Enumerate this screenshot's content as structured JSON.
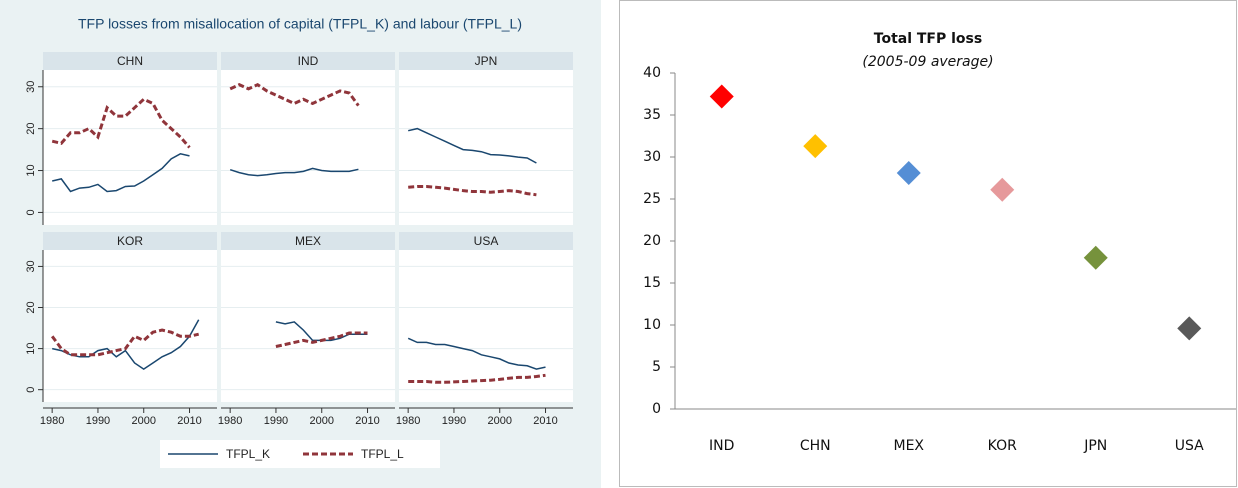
{
  "chart_data": [
    {
      "type": "line-panels",
      "title": "TFP losses from misallocation of capital (TFPL_K) and labour (TFPL_L)",
      "series": [
        {
          "name": "TFPL_K",
          "color": "#1a476f",
          "dash": false
        },
        {
          "name": "TFPL_L",
          "color": "#90353b",
          "dash": true
        }
      ],
      "xlim": [
        1978,
        2016
      ],
      "xticks": [
        1980,
        1990,
        2000,
        2010
      ],
      "ylim": [
        -3,
        34
      ],
      "yticks": [
        0,
        10,
        20,
        30
      ],
      "panels": [
        {
          "title": "CHN",
          "x": [
            1980,
            1982,
            1984,
            1986,
            1988,
            1990,
            1992,
            1994,
            1996,
            1998,
            2000,
            2002,
            2004,
            2006,
            2008,
            2010
          ],
          "values": [
            [
              7.5,
              8,
              5,
              5.8,
              6,
              6.7,
              5,
              5.2,
              6.2,
              6.3,
              7.5,
              9,
              10.5,
              12.8,
              14,
              13.5
            ],
            [
              17,
              16.5,
              19,
              19,
              20,
              18,
              25,
              23,
              23,
              25,
              27,
              26,
              22,
              20,
              18,
              15.5
            ]
          ]
        },
        {
          "title": "IND",
          "x": [
            1980,
            1982,
            1984,
            1986,
            1988,
            1990,
            1992,
            1994,
            1996,
            1998,
            2000,
            2002,
            2004,
            2006,
            2008
          ],
          "values": [
            [
              10.2,
              9.5,
              9,
              8.8,
              9,
              9.3,
              9.5,
              9.5,
              9.8,
              10.5,
              10,
              9.8,
              9.8,
              9.8,
              10.3
            ],
            [
              29.5,
              30.5,
              29.5,
              30.5,
              29,
              28,
              27,
              26,
              27,
              26,
              27,
              28,
              29,
              28.5,
              25.5
            ]
          ]
        },
        {
          "title": "JPN",
          "x": [
            1980,
            1982,
            1984,
            1986,
            1988,
            1990,
            1992,
            1994,
            1996,
            1998,
            2000,
            2002,
            2004,
            2006,
            2008
          ],
          "values": [
            [
              19.5,
              20,
              19,
              18,
              17,
              16,
              15,
              14.8,
              14.5,
              13.8,
              13.7,
              13.5,
              13.2,
              13,
              11.8
            ],
            [
              6,
              6.2,
              6.2,
              6,
              5.8,
              5.5,
              5.2,
              5,
              5,
              4.8,
              5,
              5.2,
              5,
              4.5,
              4.2
            ]
          ]
        },
        {
          "title": "KOR",
          "x": [
            1980,
            1982,
            1984,
            1986,
            1988,
            1990,
            1992,
            1994,
            1996,
            1998,
            2000,
            2002,
            2004,
            2006,
            2008,
            2010,
            2012
          ],
          "values": [
            [
              10,
              9.5,
              8.5,
              8,
              8,
              9.5,
              10,
              8,
              9.5,
              6.5,
              5,
              6.5,
              8,
              9,
              10.5,
              13,
              17
            ],
            [
              13,
              10,
              8.5,
              8.5,
              8.5,
              8.5,
              9,
              9.5,
              10,
              13,
              12,
              14,
              14.5,
              14,
              13,
              13,
              13.5
            ]
          ]
        },
        {
          "title": "MEX",
          "x": [
            1990,
            1992,
            1994,
            1996,
            1998,
            2000,
            2002,
            2004,
            2006,
            2008,
            2010
          ],
          "values": [
            [
              16.5,
              16,
              16.5,
              14.5,
              12,
              12,
              12,
              12.5,
              13.5,
              13.5,
              13.5
            ],
            [
              10.5,
              11,
              11.5,
              12,
              11.5,
              12,
              12.5,
              13,
              13.8,
              13.8,
              13.8
            ]
          ]
        },
        {
          "title": "USA",
          "x": [
            1980,
            1982,
            1984,
            1986,
            1988,
            1990,
            1992,
            1994,
            1996,
            1998,
            2000,
            2002,
            2004,
            2006,
            2008,
            2010
          ],
          "values": [
            [
              12.5,
              11.5,
              11.5,
              11,
              11,
              10.5,
              10,
              9.5,
              8.5,
              8,
              7.5,
              6.5,
              6,
              5.8,
              5,
              5.5
            ],
            [
              2,
              2,
              2,
              1.8,
              1.8,
              1.9,
              2,
              2.1,
              2.2,
              2.3,
              2.5,
              2.8,
              3,
              3,
              3.2,
              3.5
            ]
          ]
        }
      ]
    },
    {
      "type": "point",
      "title": "Total TFP loss",
      "subtitle": "(2005-09 average)",
      "categories": [
        "IND",
        "CHN",
        "MEX",
        "KOR",
        "JPN",
        "USA"
      ],
      "values": [
        37.2,
        31.3,
        28.1,
        26.1,
        18,
        9.6
      ],
      "colors": [
        "#ff0000",
        "#ffc000",
        "#558ed5",
        "#e6999b",
        "#76923c",
        "#595959"
      ],
      "ylim": [
        0,
        40
      ],
      "yticks": [
        0,
        5,
        10,
        15,
        20,
        25,
        30,
        35,
        40
      ]
    }
  ]
}
